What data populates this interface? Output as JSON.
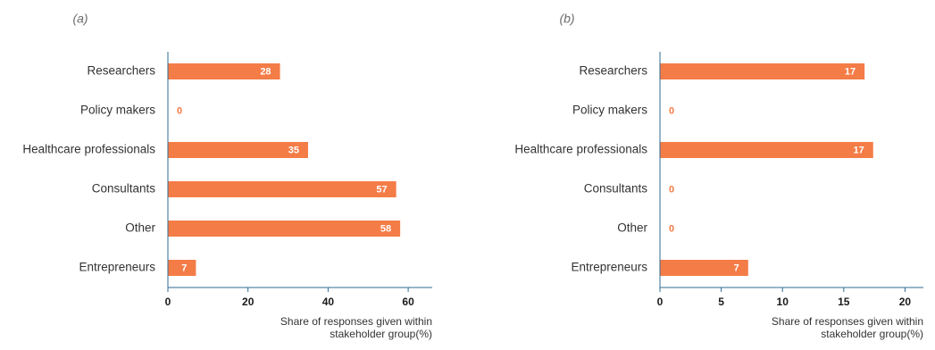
{
  "colors": {
    "bar": "#f47c47",
    "axis": "#2f6b93",
    "value_outside": "#f47c47",
    "value_inside": "#ffffff"
  },
  "chart_data": [
    {
      "type": "bar",
      "orientation": "horizontal",
      "panel_label": "(a)",
      "categories": [
        "Researchers",
        "Policy makers",
        "Healthcare professionals",
        "Consultants",
        "Other",
        "Entrepreneurs"
      ],
      "values": [
        28,
        0,
        35,
        57,
        58,
        7
      ],
      "value_labels": [
        "28",
        "0",
        "35",
        "57",
        "58",
        "7"
      ],
      "xlim": [
        0,
        66
      ],
      "xticks": [
        0,
        20,
        40,
        60
      ],
      "tick_labels": [
        "0",
        "20",
        "40",
        "60"
      ],
      "xlabel_lines": [
        "Share of responses given within",
        "stakeholder group(%)"
      ],
      "grid": false,
      "legend": "none"
    },
    {
      "type": "bar",
      "orientation": "horizontal",
      "panel_label": "(b)",
      "categories": [
        "Researchers",
        "Policy makers",
        "Healthcare professionals",
        "Consultants",
        "Other",
        "Entrepreneurs"
      ],
      "values": [
        16.7,
        0,
        17.4,
        0,
        0,
        7.2
      ],
      "value_labels": [
        "17",
        "0",
        "17",
        "0",
        "0",
        "7"
      ],
      "xlim": [
        0,
        21.5
      ],
      "xticks": [
        0,
        5,
        10,
        15,
        20
      ],
      "tick_labels": [
        "0",
        "5",
        "10",
        "15",
        "20"
      ],
      "xlabel_lines": [
        "Share of responses given within",
        "stakeholder group(%)"
      ],
      "grid": false,
      "legend": "none"
    }
  ]
}
